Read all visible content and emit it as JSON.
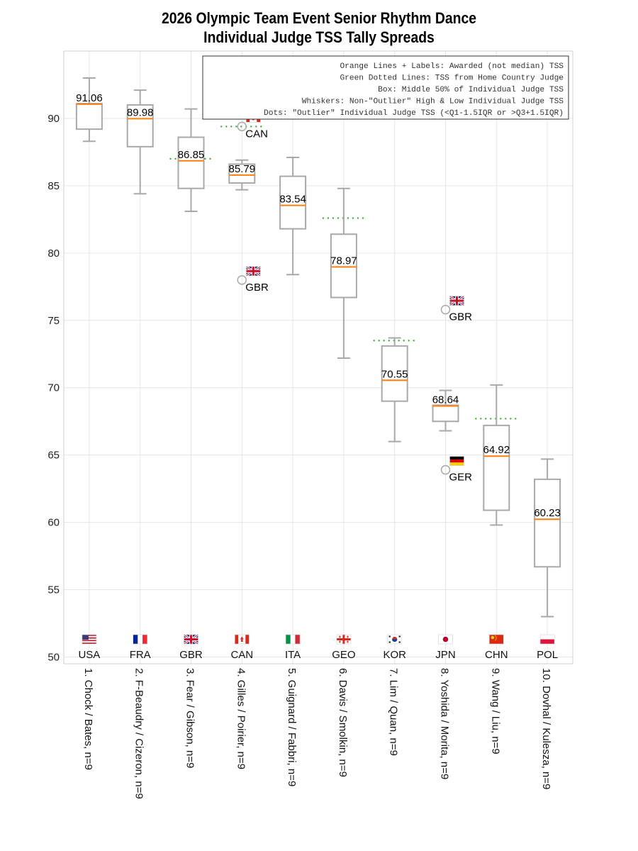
{
  "title": {
    "line1": "2026 Olympic Team Event Senior  Rhythm Dance",
    "line2": "Individual Judge TSS Tally Spreads"
  },
  "legend": [
    "Orange Lines + Labels: Awarded (not median) TSS",
    "Green Dotted Lines: TSS from Home Country Judge",
    "Box: Middle 50% of Individual Judge TSS",
    "Whiskers: Non-\"Outlier\" High & Low Individual Judge TSS",
    "Dots: \"Outlier\" Individual Judge TSS (<Q1-1.5IQR or >Q3+1.5IQR)"
  ],
  "colors": {
    "box": "#a9a9a9",
    "median": "#ff7f0e",
    "home_judge": "#2ca02c",
    "grid": "#e6e6e6"
  },
  "chart_data": {
    "type": "box",
    "ylim": [
      49.5,
      95
    ],
    "yticks": [
      50,
      55,
      60,
      65,
      70,
      75,
      80,
      85,
      90
    ],
    "grid": true,
    "legend_position": "top-right",
    "series": [
      {
        "country": "USA",
        "label": "1. Chock / Bates, n=9",
        "flag": "us",
        "awarded": 91.06,
        "awarded_label": "91.06",
        "q1": 89.2,
        "q3": 91.1,
        "whisker_low": 88.3,
        "whisker_high": 93.0,
        "home_judge": null,
        "outliers": []
      },
      {
        "country": "FRA",
        "label": "2. F-Beaudry / Cizeron, n=9",
        "flag": "fr",
        "awarded": 89.98,
        "awarded_label": "89.98",
        "q1": 87.9,
        "q3": 91.0,
        "whisker_low": 84.4,
        "whisker_high": 92.1,
        "home_judge": null,
        "outliers": []
      },
      {
        "country": "GBR",
        "label": "3. Fear / Gibson, n=9",
        "flag": "gb",
        "awarded": 86.85,
        "awarded_label": "86.85",
        "q1": 84.8,
        "q3": 88.6,
        "whisker_low": 83.1,
        "whisker_high": 90.7,
        "home_judge": 87.0,
        "outliers": []
      },
      {
        "country": "CAN",
        "label": "4. Gilles / Poirier, n=9",
        "flag": "ca",
        "awarded": 85.79,
        "awarded_label": "85.79",
        "q1": 85.2,
        "q3": 86.6,
        "whisker_low": 84.7,
        "whisker_high": 86.9,
        "home_judge": 89.4,
        "outliers": [
          {
            "value": 89.4,
            "judge": "CAN",
            "flag": "ca"
          },
          {
            "value": 78.0,
            "judge": "GBR",
            "flag": "gb"
          }
        ]
      },
      {
        "country": "ITA",
        "label": "5. Guignard / Fabbri, n=9",
        "flag": "it",
        "awarded": 83.54,
        "awarded_label": "83.54",
        "q1": 81.8,
        "q3": 85.7,
        "whisker_low": 78.4,
        "whisker_high": 87.1,
        "home_judge": null,
        "outliers": []
      },
      {
        "country": "GEO",
        "label": "6. Davis / Smolkin, n=9",
        "flag": "ge",
        "awarded": 78.97,
        "awarded_label": "78.97",
        "q1": 76.7,
        "q3": 81.4,
        "whisker_low": 72.2,
        "whisker_high": 84.8,
        "home_judge": 82.6,
        "outliers": []
      },
      {
        "country": "KOR",
        "label": "7. Lim / Quan, n=9",
        "flag": "kr",
        "awarded": 70.55,
        "awarded_label": "70.55",
        "q1": 69.0,
        "q3": 73.1,
        "whisker_low": 66.0,
        "whisker_high": 73.7,
        "home_judge": 73.5,
        "outliers": []
      },
      {
        "country": "JPN",
        "label": "8. Yoshida / Morita, n=9",
        "flag": "jp",
        "awarded": 68.64,
        "awarded_label": "68.64",
        "q1": 67.5,
        "q3": 68.7,
        "whisker_low": 66.8,
        "whisker_high": 69.8,
        "home_judge": null,
        "outliers": [
          {
            "value": 75.8,
            "judge": "GBR",
            "flag": "gb"
          },
          {
            "value": 63.9,
            "judge": "GER",
            "flag": "de"
          }
        ]
      },
      {
        "country": "CHN",
        "label": "9. Wang / Liu, n=9",
        "flag": "cn",
        "awarded": 64.92,
        "awarded_label": "64.92",
        "q1": 60.9,
        "q3": 67.2,
        "whisker_low": 59.8,
        "whisker_high": 70.2,
        "home_judge": 67.7,
        "outliers": []
      },
      {
        "country": "POL",
        "label": "10. Dovhal / Kulesza, n=9",
        "flag": "pl",
        "awarded": 60.23,
        "awarded_label": "60.23",
        "q1": 56.7,
        "q3": 63.2,
        "whisker_low": 53.0,
        "whisker_high": 64.7,
        "home_judge": null,
        "outliers": []
      }
    ]
  }
}
